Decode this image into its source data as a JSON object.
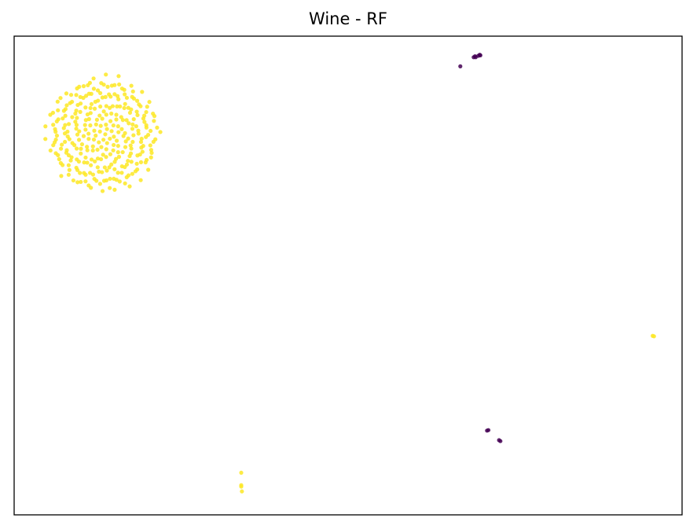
{
  "chart_data": {
    "type": "scatter",
    "title": "Wine - RF",
    "xlabel": "",
    "ylabel": "",
    "axis_ticks": false,
    "grid": false,
    "legend": "none",
    "xlim": [
      0,
      100
    ],
    "ylim": [
      0,
      100
    ],
    "colors": {
      "yellow": "#fde725",
      "purple": "#440154"
    },
    "cluster": {
      "center": [
        13.3,
        79.5
      ],
      "radius_x": 9.1,
      "radius_y": 12.8,
      "count": 300,
      "color": "yellow"
    },
    "points": [
      {
        "x": 68.8,
        "y": 95.6,
        "color": "purple"
      },
      {
        "x": 69.0,
        "y": 95.8,
        "color": "purple"
      },
      {
        "x": 69.1,
        "y": 95.6,
        "color": "purple"
      },
      {
        "x": 69.5,
        "y": 95.9,
        "color": "purple"
      },
      {
        "x": 69.7,
        "y": 96.1,
        "color": "purple"
      },
      {
        "x": 69.8,
        "y": 96.0,
        "color": "purple"
      },
      {
        "x": 66.8,
        "y": 93.7,
        "color": "purple"
      },
      {
        "x": 70.8,
        "y": 17.6,
        "color": "purple"
      },
      {
        "x": 71.0,
        "y": 17.7,
        "color": "purple"
      },
      {
        "x": 72.6,
        "y": 15.6,
        "color": "purple"
      },
      {
        "x": 72.8,
        "y": 15.4,
        "color": "purple"
      },
      {
        "x": 95.6,
        "y": 37.4,
        "color": "yellow"
      },
      {
        "x": 95.8,
        "y": 37.3,
        "color": "yellow"
      },
      {
        "x": 34.0,
        "y": 8.8,
        "color": "yellow"
      },
      {
        "x": 34.0,
        "y": 6.2,
        "color": "yellow"
      },
      {
        "x": 34.0,
        "y": 5.9,
        "color": "yellow"
      },
      {
        "x": 34.1,
        "y": 4.9,
        "color": "yellow"
      }
    ]
  }
}
